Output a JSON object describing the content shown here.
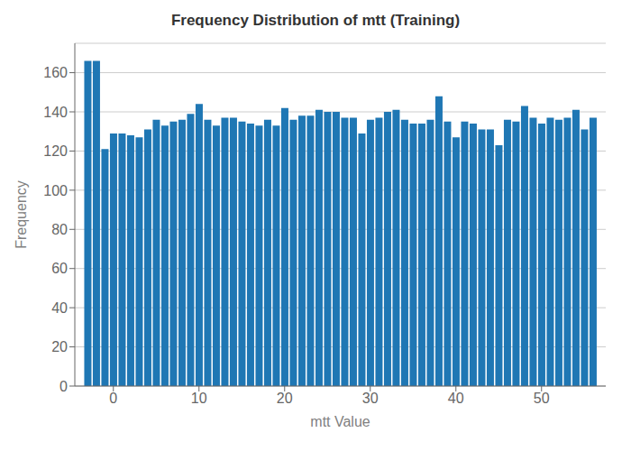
{
  "chart_data": {
    "type": "bar",
    "title": "Frequency Distribution of mtt (Training)",
    "x_label": "mtt Value",
    "y_label": "Frequency",
    "x": [
      -3,
      -2,
      -1,
      0,
      1,
      2,
      3,
      4,
      5,
      6,
      7,
      8,
      9,
      10,
      11,
      12,
      13,
      14,
      15,
      16,
      17,
      18,
      19,
      20,
      21,
      22,
      23,
      24,
      25,
      26,
      27,
      28,
      29,
      30,
      31,
      32,
      33,
      34,
      35,
      36,
      37,
      38,
      39,
      40,
      41,
      42,
      43,
      44,
      45,
      46,
      47,
      48,
      49,
      50,
      51,
      52,
      53,
      54,
      55,
      56
    ],
    "values": [
      166,
      166,
      121,
      129,
      129,
      128,
      127,
      131,
      136,
      133,
      135,
      136,
      139,
      144,
      136,
      133,
      137,
      137,
      135,
      134,
      133,
      136,
      133,
      142,
      136,
      138,
      138,
      141,
      140,
      140,
      137,
      137,
      129,
      136,
      137,
      140,
      141,
      136,
      134,
      134,
      136,
      148,
      135,
      127,
      135,
      134,
      131,
      131,
      123,
      136,
      135,
      143,
      137,
      134,
      137,
      136,
      137,
      141,
      131,
      137
    ],
    "color": "#1f77b4",
    "xlim": [
      -4.5,
      57.5
    ],
    "xticks": [
      0,
      10,
      20,
      30,
      40,
      50
    ],
    "ylim": [
      0,
      175
    ],
    "yticks": [
      0,
      20,
      40,
      60,
      80,
      100,
      120,
      140,
      160
    ],
    "grid": true
  }
}
